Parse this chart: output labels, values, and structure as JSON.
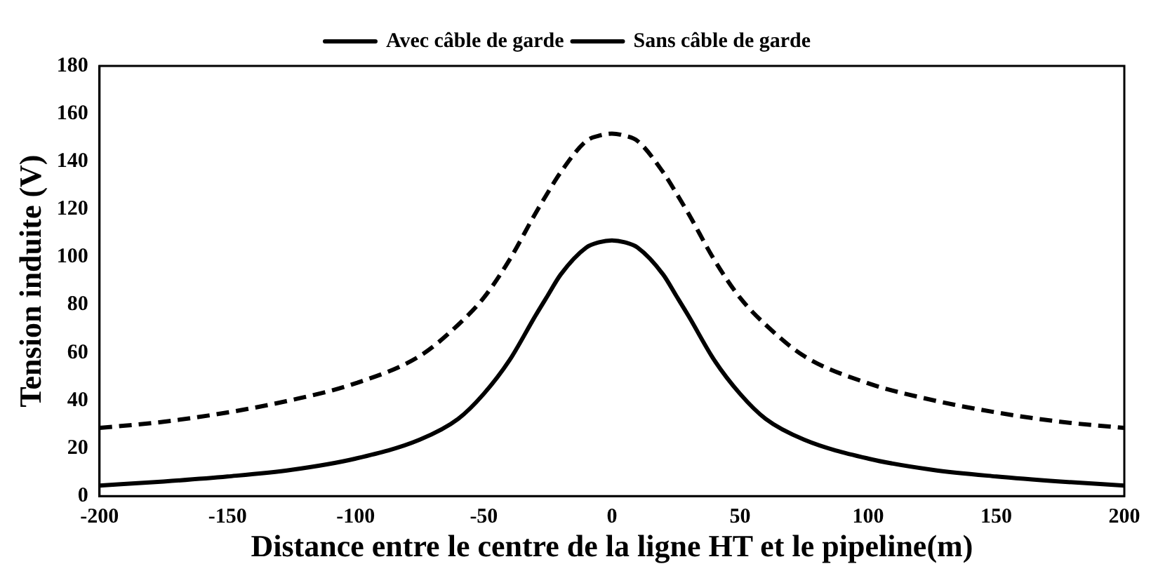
{
  "chart_data": {
    "type": "line",
    "xlabel": "Distance entre le centre de la ligne HT et le pipeline(m)",
    "ylabel": "Tension induite (V)",
    "xlim": [
      -200,
      200
    ],
    "xticks": [
      -200,
      -150,
      -100,
      -50,
      0,
      50,
      100,
      150,
      200
    ],
    "ylim": [
      0,
      180
    ],
    "yticks": [
      0,
      20,
      40,
      60,
      80,
      100,
      120,
      140,
      160,
      180
    ],
    "legend": "top",
    "marker": "none",
    "series": [
      {
        "name": "Avec câble de garde",
        "color": "#000000",
        "line_style": "dashed",
        "x": [
          -200,
          -175,
          -150,
          -125,
          -100,
          -75,
          -60,
          -50,
          -40,
          -30,
          -25,
          -20,
          -10,
          -5,
          0,
          5,
          10,
          20,
          25,
          30,
          40,
          50,
          60,
          75,
          100,
          125,
          150,
          175,
          200
        ],
        "values": [
          28.5,
          31.1,
          35,
          40.2,
          47.2,
          58.6,
          71.7,
          83,
          98.8,
          118,
          127,
          135.5,
          148.6,
          150.8,
          151.7,
          150.8,
          148.6,
          135.5,
          127,
          118,
          98.8,
          83,
          71.7,
          58.6,
          47.2,
          40.2,
          35,
          31.1,
          28.5
        ]
      },
      {
        "name": "Sans câble de garde",
        "color": "#000000",
        "line_style": "solid",
        "x": [
          -200,
          -175,
          -150,
          -125,
          -100,
          -75,
          -60,
          -50,
          -40,
          -30,
          -25,
          -20,
          -10,
          -5,
          0,
          5,
          10,
          20,
          25,
          30,
          40,
          50,
          60,
          75,
          100,
          125,
          150,
          175,
          200
        ],
        "values": [
          4.4,
          6.1,
          8.2,
          11,
          15.7,
          23.6,
          32.3,
          42.8,
          56.8,
          75.2,
          84,
          92.7,
          104,
          106.2,
          107,
          106.2,
          104,
          92.7,
          84,
          75.2,
          56.8,
          42.8,
          32.3,
          23.6,
          15.7,
          11,
          8.2,
          6.1,
          4.4
        ]
      }
    ]
  }
}
